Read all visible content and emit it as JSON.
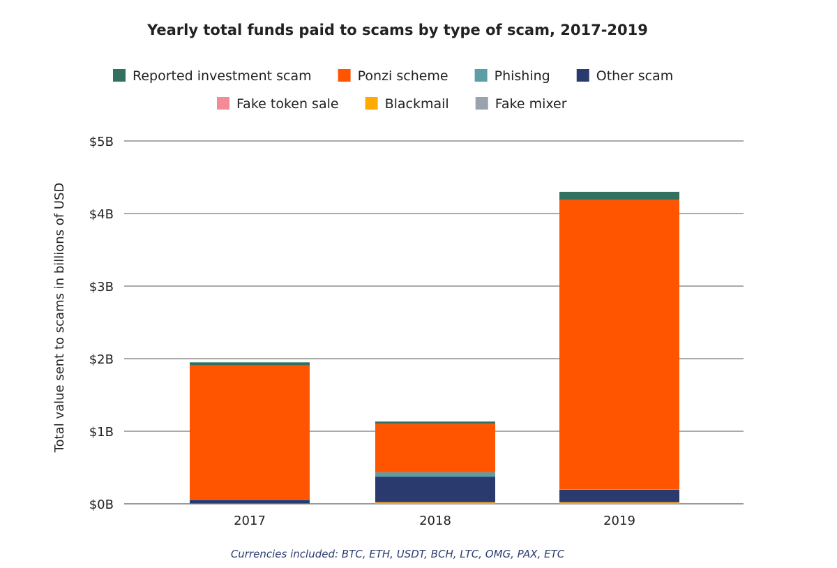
{
  "chart_data": {
    "type": "bar",
    "stacked": true,
    "title": "Yearly total funds paid to scams by type of scam, 2017-2019",
    "ylabel": "Total value sent to scams in billions of USD",
    "xlabel": "",
    "categories": [
      "2017",
      "2018",
      "2019"
    ],
    "ylim": [
      0,
      5
    ],
    "yticks": [
      {
        "value": 0,
        "label": "$0B"
      },
      {
        "value": 1,
        "label": "$1B"
      },
      {
        "value": 2,
        "label": "$2B"
      },
      {
        "value": 3,
        "label": "$3B"
      },
      {
        "value": 4,
        "label": "$4B"
      },
      {
        "value": 5,
        "label": "$5B"
      }
    ],
    "grid": true,
    "legend_position": "top",
    "legend_rows": [
      [
        "Reported investment scam",
        "Ponzi scheme",
        "Phishing",
        "Other scam"
      ],
      [
        "Fake token sale",
        "Blackmail",
        "Fake mixer"
      ]
    ],
    "series": [
      {
        "name": "Blackmail",
        "color": "#FFAA00",
        "values": [
          0.002,
          0.02,
          0.02
        ]
      },
      {
        "name": "Fake mixer",
        "color": "#9AA3AD",
        "values": [
          0.001,
          0.002,
          0.002
        ]
      },
      {
        "name": "Fake token sale",
        "color": "#F28B95",
        "values": [
          0.001,
          0.002,
          0.002
        ]
      },
      {
        "name": "Other scam",
        "color": "#2B3A6E",
        "values": [
          0.05,
          0.35,
          0.17
        ]
      },
      {
        "name": "Phishing",
        "color": "#5B9EA6",
        "values": [
          0.005,
          0.06,
          0.005
        ]
      },
      {
        "name": "Ponzi scheme",
        "color": "#FF5500",
        "values": [
          1.85,
          0.67,
          3.99
        ]
      },
      {
        "name": "Reported investment scam",
        "color": "#33705F",
        "values": [
          0.04,
          0.03,
          0.11
        ]
      }
    ],
    "footnote": "Currencies included: BTC, ETH, USDT, BCH, LTC, OMG, PAX, ETC"
  }
}
